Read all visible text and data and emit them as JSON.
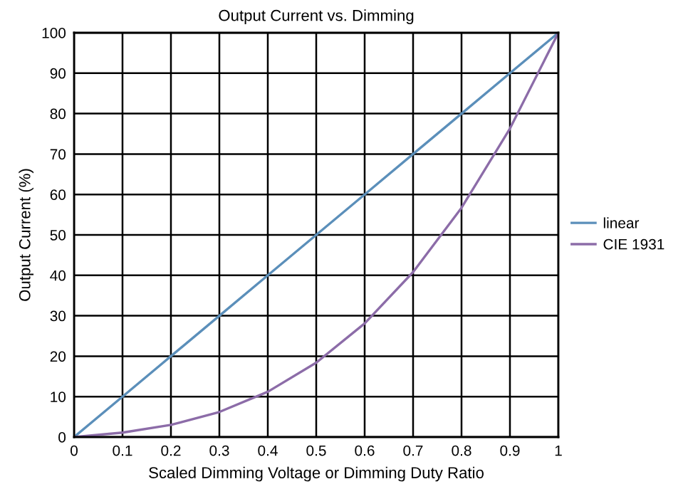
{
  "chart_data": {
    "type": "line",
    "title": "Output Current vs. Dimming",
    "xlabel": "Scaled Dimming Voltage or Dimming Duty Ratio",
    "ylabel": "Output Current (%)",
    "x": [
      0,
      0.1,
      0.2,
      0.3,
      0.4,
      0.5,
      0.6,
      0.7,
      0.8,
      0.9,
      1
    ],
    "series": [
      {
        "name": "linear",
        "color": "#5b8fba",
        "values": [
          0,
          10,
          20,
          30,
          40,
          50,
          60,
          70,
          80,
          90,
          100
        ]
      },
      {
        "name": "CIE 1931",
        "color": "#8c6ca8",
        "values": [
          0,
          1.1,
          3,
          6.2,
          11.2,
          18.4,
          28.1,
          40.8,
          56.7,
          76.3,
          100
        ]
      }
    ],
    "xlim": [
      0,
      1
    ],
    "ylim": [
      0,
      100
    ],
    "xticks": [
      0,
      0.1,
      0.2,
      0.3,
      0.4,
      0.5,
      0.6,
      0.7,
      0.8,
      0.9,
      1
    ],
    "yticks": [
      0,
      10,
      20,
      30,
      40,
      50,
      60,
      70,
      80,
      90,
      100
    ],
    "grid": true,
    "legend": "right",
    "marker": "none",
    "line_style": "solid"
  }
}
